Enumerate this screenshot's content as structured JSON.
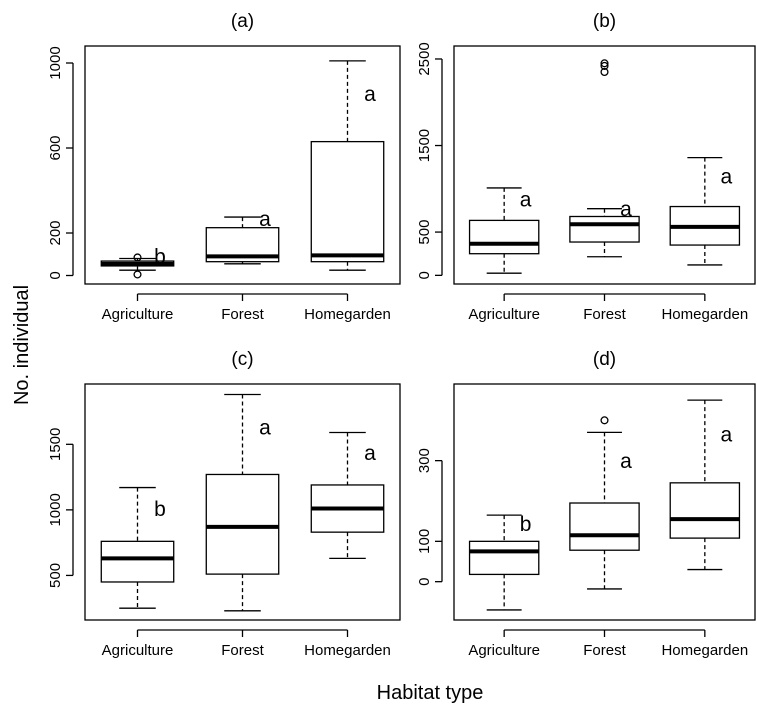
{
  "figure": {
    "ylabel": "No. individual",
    "xlabel": "Habitat type"
  },
  "chart_data": [
    {
      "type": "box",
      "title": "(a)",
      "categories": [
        "Agriculture",
        "Forest",
        "Homegarden"
      ],
      "ylim": [
        -40,
        1080
      ],
      "yticks": [
        0,
        200,
        600,
        1000
      ],
      "boxes": [
        {
          "category": "Agriculture",
          "whisker_low": 25,
          "q1": 45,
          "median": 55,
          "q3": 68,
          "whisker_high": 80,
          "outliers": [
            5,
            85
          ],
          "letter": "b"
        },
        {
          "category": "Forest",
          "whisker_low": 55,
          "q1": 65,
          "median": 90,
          "q3": 225,
          "whisker_high": 275,
          "outliers": [],
          "letter": "a"
        },
        {
          "category": "Homegarden",
          "whisker_low": 25,
          "q1": 65,
          "median": 95,
          "q3": 630,
          "whisker_high": 1010,
          "outliers": [],
          "letter": "a"
        }
      ]
    },
    {
      "type": "box",
      "title": "(b)",
      "categories": [
        "Agriculture",
        "Forest",
        "Homegarden"
      ],
      "ylim": [
        -100,
        2650
      ],
      "yticks": [
        0,
        500,
        1500,
        2500
      ],
      "boxes": [
        {
          "category": "Agriculture",
          "whisker_low": 25,
          "q1": 250,
          "median": 365,
          "q3": 635,
          "whisker_high": 1010,
          "outliers": [],
          "letter": "a"
        },
        {
          "category": "Forest",
          "whisker_low": 215,
          "q1": 385,
          "median": 590,
          "q3": 680,
          "whisker_high": 770,
          "outliers": [
            2350,
            2420,
            2450
          ],
          "letter": "a"
        },
        {
          "category": "Homegarden",
          "whisker_low": 120,
          "q1": 350,
          "median": 560,
          "q3": 795,
          "whisker_high": 1360,
          "outliers": [],
          "letter": "a"
        }
      ]
    },
    {
      "type": "box",
      "title": "(c)",
      "categories": [
        "Agriculture",
        "Forest",
        "Homegarden"
      ],
      "ylim": [
        160,
        1960
      ],
      "yticks": [
        500,
        1000,
        1500
      ],
      "boxes": [
        {
          "category": "Agriculture",
          "whisker_low": 250,
          "q1": 450,
          "median": 630,
          "q3": 760,
          "whisker_high": 1170,
          "outliers": [],
          "letter": "b"
        },
        {
          "category": "Forest",
          "whisker_low": 230,
          "q1": 510,
          "median": 870,
          "q3": 1270,
          "whisker_high": 1880,
          "outliers": [],
          "letter": "a"
        },
        {
          "category": "Homegarden",
          "whisker_low": 630,
          "q1": 830,
          "median": 1010,
          "q3": 1190,
          "whisker_high": 1590,
          "outliers": [],
          "letter": "a"
        }
      ]
    },
    {
      "type": "box",
      "title": "(d)",
      "categories": [
        "Agriculture",
        "Forest",
        "Homegarden"
      ],
      "ylim": [
        -95,
        490
      ],
      "yticks": [
        0,
        100,
        300
      ],
      "boxes": [
        {
          "category": "Agriculture",
          "whisker_low": -70,
          "q1": 18,
          "median": 75,
          "q3": 100,
          "whisker_high": 165,
          "outliers": [],
          "letter": "b"
        },
        {
          "category": "Forest",
          "whisker_low": -18,
          "q1": 78,
          "median": 115,
          "q3": 195,
          "whisker_high": 370,
          "outliers": [
            400
          ],
          "letter": "a"
        },
        {
          "category": "Homegarden",
          "whisker_low": 30,
          "q1": 108,
          "median": 155,
          "q3": 245,
          "whisker_high": 450,
          "outliers": [],
          "letter": "a"
        }
      ]
    }
  ]
}
